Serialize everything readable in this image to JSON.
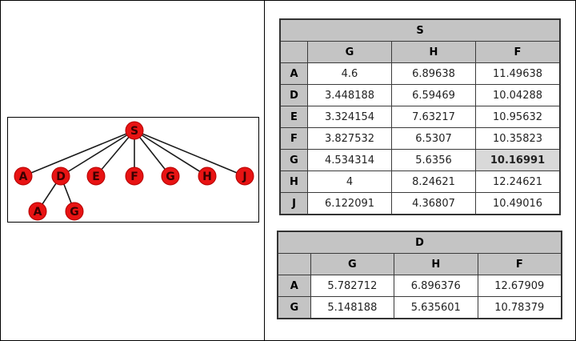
{
  "tree": {
    "root": "S",
    "children": [
      "A",
      "D",
      "E",
      "F",
      "G",
      "H",
      "J"
    ],
    "d_children": [
      "A",
      "G"
    ]
  },
  "table_s": {
    "title": "S",
    "columns": [
      "G",
      "H",
      "F"
    ],
    "rows": [
      {
        "label": "A",
        "values": [
          "4.6",
          "6.89638",
          "11.49638"
        ]
      },
      {
        "label": "D",
        "values": [
          "3.448188",
          "6.59469",
          "10.04288"
        ]
      },
      {
        "label": "E",
        "values": [
          "3.324154",
          "7.63217",
          "10.95632"
        ]
      },
      {
        "label": "F",
        "values": [
          "3.827532",
          "6.5307",
          "10.35823"
        ]
      },
      {
        "label": "G",
        "values": [
          "4.534314",
          "5.6356",
          "10.16991"
        ]
      },
      {
        "label": "H",
        "values": [
          "4",
          "8.24621",
          "12.24621"
        ]
      },
      {
        "label": "J",
        "values": [
          "6.122091",
          "4.36807",
          "10.49016"
        ]
      }
    ]
  },
  "table_d": {
    "title": "D",
    "columns": [
      "G",
      "H",
      "F"
    ],
    "rows": [
      {
        "label": "A",
        "values": [
          "5.782712",
          "6.896376",
          "12.67909"
        ]
      },
      {
        "label": "G",
        "values": [
          "5.148188",
          "5.635601",
          "10.78379"
        ]
      }
    ]
  }
}
